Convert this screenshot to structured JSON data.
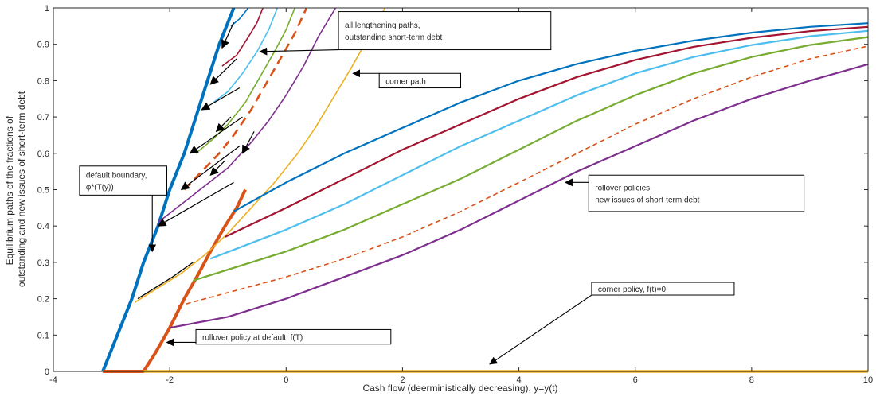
{
  "chart_data": {
    "type": "line",
    "title": "",
    "xlabel": "Cash flow (deerministically decreasing), y=y(t)",
    "ylabel_lines": [
      "Equilibrium paths of the fractions of",
      "outstanding and new issues of short-term debt"
    ],
    "xlim": [
      -4,
      10
    ],
    "ylim": [
      0,
      1
    ],
    "x_ticks": [
      -4,
      -2,
      0,
      2,
      4,
      6,
      8,
      10
    ],
    "y_ticks": [
      0,
      0.1,
      0.2,
      0.3,
      0.4,
      0.5,
      0.6,
      0.7,
      0.8,
      0.9,
      1
    ],
    "x_tick_labels": [
      "-4",
      "-2",
      "0",
      "2",
      "4",
      "6",
      "8",
      "10"
    ],
    "y_tick_labels": [
      "0",
      "0.1",
      "0.2",
      "0.3",
      "0.4",
      "0.5",
      "0.6",
      "0.7",
      "0.8",
      "0.9",
      "1"
    ],
    "grid": false,
    "colors": {
      "blue": "#0072BD",
      "orange": "#D95319",
      "yellow": "#EDB120",
      "purple": "#7E2F8E",
      "green": "#77AC30",
      "cyan": "#4DBEEE",
      "red": "#A2142F",
      "black": "#000000"
    },
    "series": [
      {
        "role": "default-boundary",
        "color": "blue",
        "width": 4,
        "dash": false,
        "points": [
          [
            -3.15,
            0
          ],
          [
            -2.9,
            0.1
          ],
          [
            -2.65,
            0.2
          ],
          [
            -2.45,
            0.3
          ],
          [
            -2.2,
            0.4
          ],
          [
            -2.0,
            0.5
          ],
          [
            -1.75,
            0.6
          ],
          [
            -1.55,
            0.7
          ],
          [
            -1.35,
            0.8
          ],
          [
            -1.15,
            0.9
          ],
          [
            -0.9,
            1.0
          ]
        ]
      },
      {
        "role": "rollover-at-default",
        "color": "orange",
        "width": 4,
        "dash": false,
        "points": [
          [
            -3.15,
            0
          ],
          [
            -2.45,
            0
          ],
          [
            -2.25,
            0.05
          ],
          [
            -2.0,
            0.12
          ],
          [
            -1.75,
            0.2
          ],
          [
            -1.5,
            0.27
          ],
          [
            -1.3,
            0.33
          ],
          [
            -1.05,
            0.4
          ],
          [
            -0.85,
            0.45
          ],
          [
            -0.7,
            0.5
          ]
        ]
      },
      {
        "role": "corner-policy",
        "color": "yellow",
        "width": 3.5,
        "dash": false,
        "points": [
          [
            -2.45,
            0
          ],
          [
            10,
            0
          ]
        ]
      },
      {
        "role": "lengthening-path",
        "color": "black",
        "width": 1.3,
        "dash": false,
        "points": [
          [
            -2.55,
            0.2
          ],
          [
            -1.95,
            0.26
          ],
          [
            -1.6,
            0.3
          ]
        ]
      },
      {
        "role": "corner-path",
        "color": "yellow",
        "width": 1.6,
        "dash": false,
        "points": [
          [
            -2.6,
            0.19
          ],
          [
            -2.2,
            0.23
          ],
          [
            -1.8,
            0.27
          ],
          [
            -1.4,
            0.32
          ],
          [
            -1.0,
            0.38
          ],
          [
            -0.6,
            0.45
          ],
          [
            -0.2,
            0.52
          ],
          [
            0.2,
            0.6
          ],
          [
            0.5,
            0.67
          ],
          [
            0.8,
            0.75
          ],
          [
            1.1,
            0.83
          ],
          [
            1.35,
            0.9
          ],
          [
            1.7,
            1.0
          ]
        ]
      },
      {
        "role": "lengthening-path",
        "color": "purple",
        "width": 1.6,
        "dash": false,
        "points": [
          [
            -2.2,
            0.41
          ],
          [
            -1.8,
            0.46
          ],
          [
            -1.4,
            0.51
          ],
          [
            -1.0,
            0.56
          ],
          [
            -0.6,
            0.63
          ],
          [
            -0.3,
            0.69
          ],
          [
            0.0,
            0.76
          ],
          [
            0.3,
            0.84
          ],
          [
            0.55,
            0.92
          ],
          [
            0.85,
            1.0
          ]
        ]
      },
      {
        "role": "lengthening-path",
        "color": "orange",
        "width": 2.6,
        "dash": true,
        "points": [
          [
            -1.75,
            0.5
          ],
          [
            -1.45,
            0.55
          ],
          [
            -1.15,
            0.6
          ],
          [
            -0.9,
            0.65
          ],
          [
            -0.6,
            0.72
          ],
          [
            -0.35,
            0.79
          ],
          [
            -0.1,
            0.86
          ],
          [
            0.15,
            0.93
          ],
          [
            0.35,
            1.0
          ]
        ]
      },
      {
        "role": "lengthening-path",
        "color": "green",
        "width": 1.6,
        "dash": false,
        "points": [
          [
            -1.55,
            0.6
          ],
          [
            -1.25,
            0.64
          ],
          [
            -1.0,
            0.68
          ],
          [
            -0.7,
            0.74
          ],
          [
            -0.45,
            0.81
          ],
          [
            -0.2,
            0.88
          ],
          [
            0.0,
            0.94
          ],
          [
            0.15,
            1.0
          ]
        ]
      },
      {
        "role": "lengthening-path",
        "color": "cyan",
        "width": 1.6,
        "dash": false,
        "points": [
          [
            -1.25,
            0.74
          ],
          [
            -1.0,
            0.77
          ],
          [
            -0.75,
            0.82
          ],
          [
            -0.5,
            0.88
          ],
          [
            -0.3,
            0.94
          ],
          [
            -0.15,
            1.0
          ]
        ]
      },
      {
        "role": "lengthening-path",
        "color": "red",
        "width": 1.6,
        "dash": false,
        "points": [
          [
            -1.1,
            0.84
          ],
          [
            -0.85,
            0.87
          ],
          [
            -0.65,
            0.92
          ],
          [
            -0.5,
            0.96
          ],
          [
            -0.4,
            1.0
          ]
        ]
      },
      {
        "role": "lengthening-path",
        "color": "blue",
        "width": 1.6,
        "dash": false,
        "points": [
          [
            -0.95,
            0.95
          ],
          [
            -0.8,
            0.97
          ],
          [
            -0.65,
            1.0
          ]
        ]
      },
      {
        "role": "rollover-policy",
        "color": "blue",
        "width": 2.2,
        "dash": false,
        "points": [
          [
            -0.9,
            0.44
          ],
          [
            0,
            0.52
          ],
          [
            1,
            0.6
          ],
          [
            2,
            0.67
          ],
          [
            3,
            0.74
          ],
          [
            4,
            0.8
          ],
          [
            5,
            0.846
          ],
          [
            6,
            0.882
          ],
          [
            7,
            0.91
          ],
          [
            8,
            0.932
          ],
          [
            9,
            0.948
          ],
          [
            10,
            0.958
          ]
        ]
      },
      {
        "role": "rollover-policy",
        "color": "red",
        "width": 2.2,
        "dash": false,
        "points": [
          [
            -1.05,
            0.37
          ],
          [
            0,
            0.45
          ],
          [
            1,
            0.53
          ],
          [
            2,
            0.61
          ],
          [
            3,
            0.68
          ],
          [
            4,
            0.75
          ],
          [
            5,
            0.81
          ],
          [
            6,
            0.857
          ],
          [
            7,
            0.893
          ],
          [
            8,
            0.918
          ],
          [
            9,
            0.936
          ],
          [
            10,
            0.948
          ]
        ]
      },
      {
        "role": "rollover-policy",
        "color": "cyan",
        "width": 2.2,
        "dash": false,
        "points": [
          [
            -1.3,
            0.31
          ],
          [
            0,
            0.39
          ],
          [
            1,
            0.46
          ],
          [
            2,
            0.54
          ],
          [
            3,
            0.62
          ],
          [
            4,
            0.69
          ],
          [
            5,
            0.76
          ],
          [
            6,
            0.82
          ],
          [
            7,
            0.865
          ],
          [
            8,
            0.898
          ],
          [
            9,
            0.922
          ],
          [
            10,
            0.937
          ]
        ]
      },
      {
        "role": "rollover-policy",
        "color": "green",
        "width": 2.2,
        "dash": false,
        "points": [
          [
            -1.6,
            0.25
          ],
          [
            0,
            0.33
          ],
          [
            1,
            0.39
          ],
          [
            2,
            0.46
          ],
          [
            3,
            0.53
          ],
          [
            4,
            0.61
          ],
          [
            5,
            0.69
          ],
          [
            6,
            0.76
          ],
          [
            7,
            0.82
          ],
          [
            8,
            0.865
          ],
          [
            9,
            0.898
          ],
          [
            10,
            0.92
          ]
        ]
      },
      {
        "role": "rollover-policy",
        "color": "orange",
        "width": 1.6,
        "dash": true,
        "points": [
          [
            -1.85,
            0.18
          ],
          [
            0,
            0.26
          ],
          [
            1,
            0.31
          ],
          [
            2,
            0.37
          ],
          [
            3,
            0.44
          ],
          [
            4,
            0.52
          ],
          [
            5,
            0.6
          ],
          [
            6,
            0.68
          ],
          [
            7,
            0.75
          ],
          [
            8,
            0.81
          ],
          [
            9,
            0.86
          ],
          [
            10,
            0.895
          ]
        ]
      },
      {
        "role": "rollover-policy",
        "color": "purple",
        "width": 2.2,
        "dash": false,
        "points": [
          [
            -2.0,
            0.12
          ],
          [
            -1,
            0.15
          ],
          [
            0,
            0.2
          ],
          [
            1,
            0.26
          ],
          [
            2,
            0.32
          ],
          [
            3,
            0.39
          ],
          [
            4,
            0.47
          ],
          [
            5,
            0.55
          ],
          [
            6,
            0.62
          ],
          [
            7,
            0.69
          ],
          [
            8,
            0.75
          ],
          [
            9,
            0.8
          ],
          [
            10,
            0.845
          ]
        ]
      }
    ],
    "boundary_arrows": [
      [
        [
          -0.9,
          0.96
        ],
        [
          -1.1,
          0.89
        ]
      ],
      [
        [
          -0.85,
          0.86
        ],
        [
          -1.3,
          0.79
        ]
      ],
      [
        [
          -0.8,
          0.78
        ],
        [
          -1.45,
          0.72
        ]
      ],
      [
        [
          -0.75,
          0.7
        ],
        [
          -1.65,
          0.6
        ]
      ],
      [
        [
          -0.8,
          0.62
        ],
        [
          -1.8,
          0.5
        ]
      ],
      [
        [
          -0.9,
          0.52
        ],
        [
          -2.2,
          0.4
        ]
      ]
    ],
    "path_arrows": [
      [
        [
          -0.95,
          0.7
        ],
        [
          -1.2,
          0.66
        ]
      ],
      [
        [
          -1.05,
          0.58
        ],
        [
          -1.3,
          0.54
        ]
      ],
      [
        [
          -0.55,
          0.66
        ],
        [
          -0.75,
          0.6
        ]
      ]
    ],
    "annotations": [
      {
        "id": "lengthening",
        "lines": [
          "all lengthening paths,",
          "outstanding short-term debt"
        ],
        "anchor": [
          -0.45,
          0.88
        ],
        "box": [
          0.9,
          0.885,
          4.55,
          0.99
        ]
      },
      {
        "id": "corner-path",
        "lines": [
          "corner path"
        ],
        "anchor": [
          1.15,
          0.82
        ],
        "box": [
          1.6,
          0.78,
          3.0,
          0.82
        ]
      },
      {
        "id": "default-boundary",
        "lines": [
          "default boundary,",
          "φ*(T(y))"
        ],
        "anchor": [
          -2.3,
          0.33
        ],
        "box": [
          -3.55,
          0.485,
          -2.05,
          0.565
        ]
      },
      {
        "id": "rollover-policies",
        "lines": [
          "rollover policies,",
          "new issues of short-term debt"
        ],
        "anchor": [
          4.8,
          0.52
        ],
        "box": [
          5.2,
          0.44,
          8.9,
          0.54
        ]
      },
      {
        "id": "corner-policy",
        "lines": [
          "corner policy, f(t)=0"
        ],
        "anchor": [
          3.5,
          0.02
        ],
        "box": [
          5.25,
          0.21,
          7.7,
          0.245
        ]
      },
      {
        "id": "rollover-at-default",
        "lines": [
          "rollover policy at default, f(T)"
        ],
        "anchor": [
          -2.05,
          0.08
        ],
        "box": [
          -1.55,
          0.075,
          1.8,
          0.115
        ]
      }
    ]
  }
}
